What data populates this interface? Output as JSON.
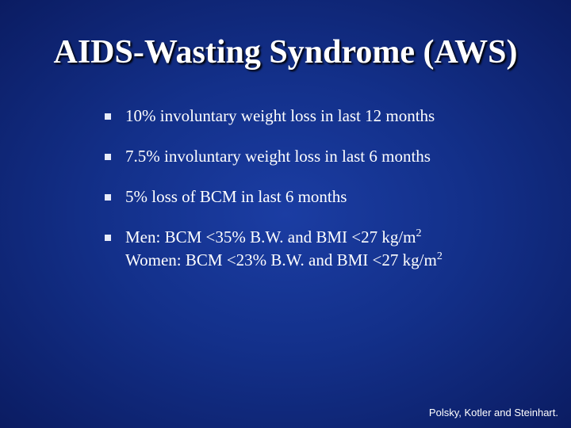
{
  "title": "AIDS-Wasting Syndrome (AWS)",
  "bullets": [
    {
      "lines": [
        {
          "text": "10% involuntary weight loss in last 12 months"
        }
      ]
    },
    {
      "lines": [
        {
          "text": "7.5% involuntary weight loss in last 6 months"
        }
      ]
    },
    {
      "lines": [
        {
          "text": "5% loss of BCM in last 6 months"
        }
      ]
    },
    {
      "lines": [
        {
          "text": "Men: BCM <35% B.W. and BMI <27 kg/m",
          "sup": "2"
        },
        {
          "text": "Women: BCM <23% B.W. and BMI <27 kg/m",
          "sup": "2"
        }
      ]
    }
  ],
  "footer": "Polsky, Kotler and Steinhart."
}
